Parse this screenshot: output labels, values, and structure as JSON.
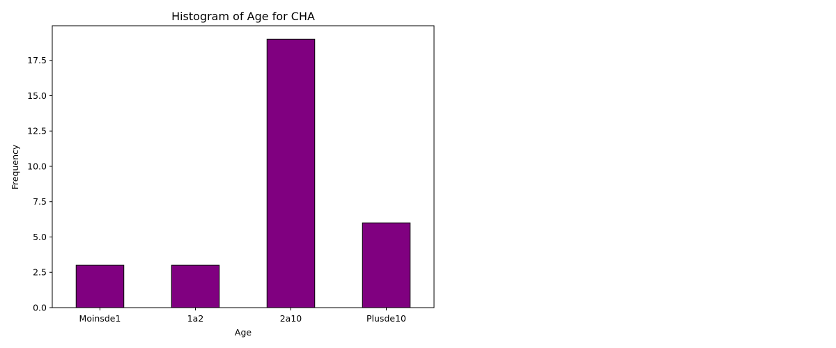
{
  "chart_data": {
    "type": "bar",
    "title": "Histogram of Age for CHA",
    "xlabel": "Age",
    "ylabel": "Frequency",
    "categories": [
      "Moinsde1",
      "1a2",
      "2a10",
      "Plusde10"
    ],
    "values": [
      3,
      3,
      19,
      6
    ],
    "ylim": [
      0,
      19.95
    ],
    "yticks": [
      0.0,
      2.5,
      5.0,
      7.5,
      10.0,
      12.5,
      15.0,
      17.5
    ],
    "ytick_labels": [
      "0.0",
      "2.5",
      "5.0",
      "7.5",
      "10.0",
      "12.5",
      "15.0",
      "17.5"
    ],
    "bar_color": "#800080",
    "edge_color": "#000000",
    "grid": false,
    "legend": "none"
  }
}
